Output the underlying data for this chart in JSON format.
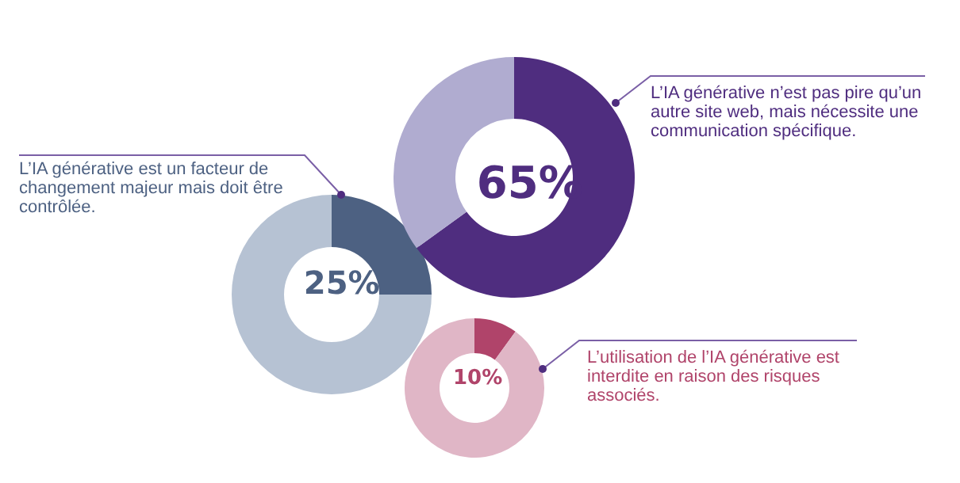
{
  "chart_data": [
    {
      "type": "donut",
      "categories": [
        null,
        null
      ],
      "values": [
        65,
        35
      ],
      "colors": [
        "#4f2d7f",
        "#b0acd0"
      ],
      "value_labels": [
        "65%",
        null
      ],
      "annotations": [
        "L’IA générative n’est pas pire qu’un autre site web, mais nécessite une communication spécifique."
      ]
    },
    {
      "type": "donut",
      "categories": [
        null,
        null
      ],
      "values": [
        25,
        75
      ],
      "colors": [
        "#4d6182",
        "#b6c2d3"
      ],
      "value_labels": [
        "25%",
        null
      ],
      "annotations": [
        "L’IA générative est un facteur de changement majeur mais doit être contrôlée."
      ]
    },
    {
      "type": "donut",
      "categories": [
        null,
        null
      ],
      "values": [
        10,
        90
      ],
      "colors": [
        "#b0446a",
        "#e0b6c6"
      ],
      "value_labels": [
        "10%",
        null
      ],
      "annotations": [
        "L’utilisation de l’IA générative est interdite en raison des risques associés."
      ]
    }
  ]
}
